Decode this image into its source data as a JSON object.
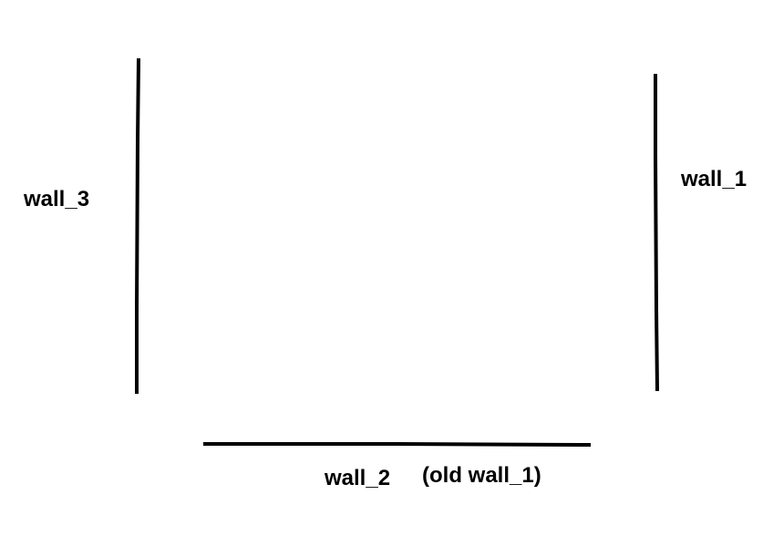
{
  "diagram": {
    "labels": {
      "wall_3": "wall_3",
      "wall_1": "wall_1",
      "wall_2": "wall_2",
      "old_wall_1": "(old wall_1)"
    },
    "colors": {
      "background": "#ffffff",
      "stroke": "#000000",
      "text": "#000000"
    }
  }
}
